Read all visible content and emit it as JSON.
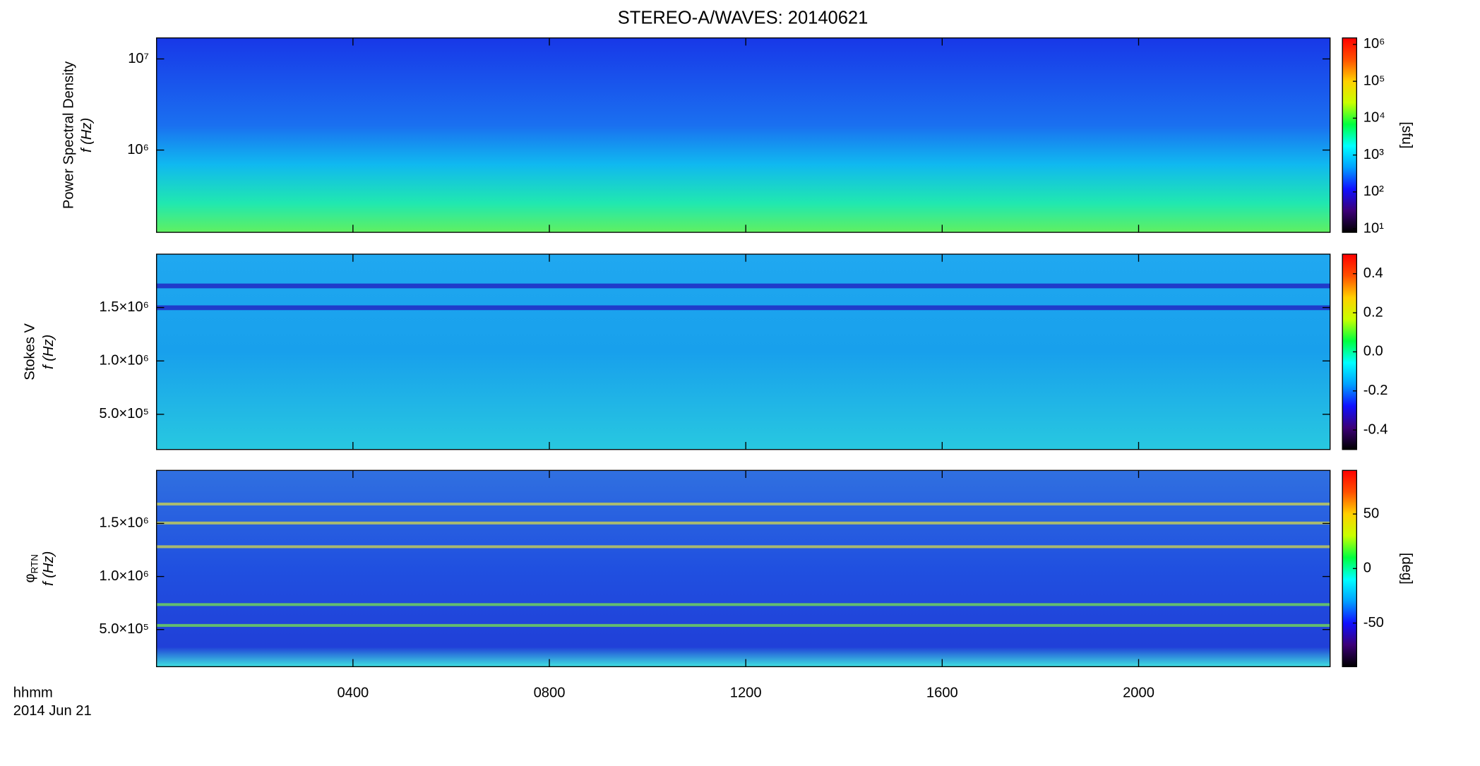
{
  "title": "STEREO-A/WAVES: 20140621",
  "x_axis_label": "hhmm",
  "date_label": "2014 Jun 21",
  "colormap": [
    "#000000",
    "#3c0078",
    "#1010ff",
    "#00a0ff",
    "#00ffff",
    "#00ff40",
    "#c8ff00",
    "#ffd000",
    "#ff5000",
    "#ff0000"
  ],
  "chart_data": [
    {
      "type": "heatmap",
      "ylabel": "Power Spectral Density",
      "ylabel2": "f (Hz)",
      "log": true,
      "ylim": [
        125000,
        17000000
      ],
      "yticks": [
        {
          "value": 1000000,
          "label": "10⁶"
        },
        {
          "value": 10000000,
          "label": "10⁷"
        }
      ],
      "clog": true,
      "clim": [
        8,
        1500000
      ],
      "cticks": [
        {
          "value": 10,
          "label": "10¹"
        },
        {
          "value": 100,
          "label": "10²"
        },
        {
          "value": 1000,
          "label": "10³"
        },
        {
          "value": 10000,
          "label": "10⁴"
        },
        {
          "value": 100000,
          "label": "10⁵"
        },
        {
          "value": 1000000,
          "label": "10⁶"
        }
      ],
      "colorbar_label": "[sfu]"
    },
    {
      "type": "heatmap",
      "ylabel": "Stokes V",
      "ylabel2": "f (Hz)",
      "log": false,
      "ylim": [
        170000,
        2000000
      ],
      "yticks": [
        {
          "value": 500000,
          "label": "5.0×10⁵"
        },
        {
          "value": 1000000,
          "label": "1.0×10⁶"
        },
        {
          "value": 1500000,
          "label": "1.5×10⁶"
        }
      ],
      "clog": false,
      "clim": [
        -0.5,
        0.5
      ],
      "cticks": [
        -0.4,
        -0.2,
        {
          "value": 0,
          "label": "0.0"
        },
        0.2,
        0.4
      ]
    },
    {
      "type": "heatmap",
      "ylabel": "φ",
      "ylabel_subscript": "RTN",
      "ylabel2": "f (Hz)",
      "log": false,
      "ylim": [
        150000,
        2000000
      ],
      "yticks": [
        {
          "value": 500000,
          "label": "5.0×10⁵"
        },
        {
          "value": 1000000,
          "label": "1.0×10⁶"
        },
        {
          "value": 1500000,
          "label": "1.5×10⁶"
        }
      ],
      "clog": false,
      "clim": [
        -90,
        90
      ],
      "cticks": [
        -50,
        0,
        50
      ],
      "colorbar_label": "[deg]",
      "xlim": [
        0,
        23.9
      ],
      "xticks": [
        {
          "value": 4,
          "label": "0400"
        },
        {
          "value": 8,
          "label": "0800"
        },
        {
          "value": 12,
          "label": "1200"
        },
        {
          "value": 16,
          "label": "1600"
        },
        {
          "value": 20,
          "label": "2000"
        }
      ]
    }
  ]
}
